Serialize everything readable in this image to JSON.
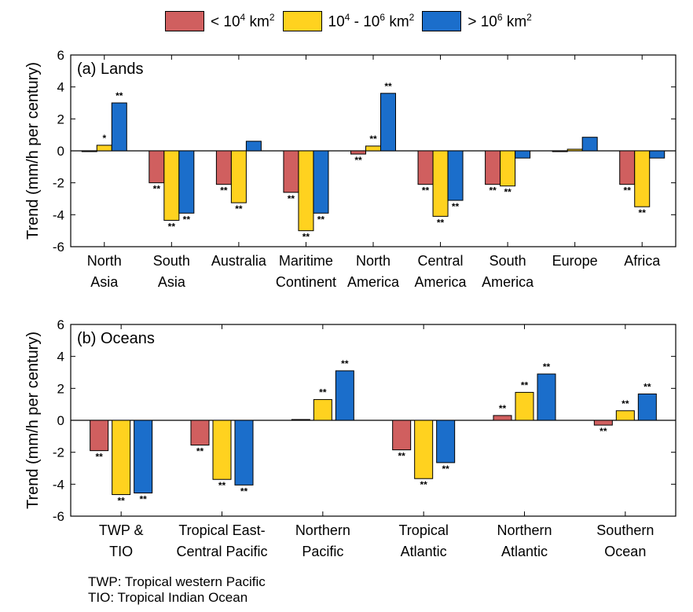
{
  "legend": [
    {
      "prefix": "< 10",
      "sup1": "4",
      "mid": " km",
      "sup2": "2",
      "suffix": "",
      "color": "#d05f5f"
    },
    {
      "prefix": "10",
      "sup1": "4",
      "mid": " - 10",
      "sup2": "6",
      "suffix": " km",
      "sup3": "2",
      "color": "#ffd21f"
    },
    {
      "prefix": "> 10",
      "sup1": "6",
      "mid": " km",
      "sup2": "2",
      "suffix": "",
      "color": "#1b6ecb"
    }
  ],
  "chart_data": [
    {
      "type": "bar",
      "panel_label": "(a)  Lands",
      "ylabel": "Trend (mm/h per century)",
      "ylim": [
        -6,
        6
      ],
      "yticks": [
        6,
        4,
        2,
        0,
        -2,
        -4,
        -6
      ],
      "categories": [
        [
          "North",
          "Asia"
        ],
        [
          "South",
          "Asia"
        ],
        [
          "Australia"
        ],
        [
          "Maritime",
          "Continent"
        ],
        [
          "North",
          "America"
        ],
        [
          "Central",
          "America"
        ],
        [
          "South",
          "America"
        ],
        [
          "Europe"
        ],
        [
          "Africa"
        ]
      ],
      "series": [
        {
          "name": "< 10^4 km^2",
          "color": "#d05f5f",
          "values": [
            0.0,
            -2.0,
            -2.1,
            -2.6,
            -0.2,
            -2.1,
            -2.1,
            -0.05,
            -2.1
          ],
          "sig": [
            "",
            "**",
            "**",
            "**",
            "**",
            "**",
            "**",
            "",
            "**"
          ]
        },
        {
          "name": "10^4 - 10^6 km^2",
          "color": "#ffd21f",
          "values": [
            0.35,
            -4.35,
            -3.25,
            -5.0,
            0.3,
            -4.1,
            -2.2,
            0.1,
            -3.5
          ],
          "sig": [
            "*",
            "**",
            "**",
            "**",
            "**",
            "**",
            "**",
            "",
            "**"
          ]
        },
        {
          "name": "> 10^6 km^2",
          "color": "#1b6ecb",
          "values": [
            3.0,
            -3.9,
            0.6,
            -3.9,
            3.6,
            -3.1,
            -0.45,
            0.85,
            -0.45
          ],
          "sig": [
            "**",
            "**",
            "",
            "**",
            "**",
            "**",
            "",
            "",
            ""
          ]
        }
      ]
    },
    {
      "type": "bar",
      "panel_label": "(b)  Oceans",
      "ylabel": "Trend (mm/h per century)",
      "ylim": [
        -6,
        6
      ],
      "yticks": [
        6,
        4,
        2,
        0,
        -2,
        -4,
        -6
      ],
      "categories": [
        [
          "TWP &",
          "TIO"
        ],
        [
          "Tropical East-",
          "Central Pacific"
        ],
        [
          "Northern",
          "Pacific"
        ],
        [
          "Tropical",
          "Atlantic"
        ],
        [
          "Northern",
          "Atlantic"
        ],
        [
          "Southern",
          "Ocean"
        ]
      ],
      "series": [
        {
          "name": "< 10^4 km^2",
          "color": "#d05f5f",
          "values": [
            -1.9,
            -1.55,
            0.05,
            -1.85,
            0.3,
            -0.3
          ],
          "sig": [
            "**",
            "**",
            "",
            "**",
            "**",
            "**"
          ]
        },
        {
          "name": "10^4 - 10^6 km^2",
          "color": "#ffd21f",
          "values": [
            -4.65,
            -3.7,
            1.3,
            -3.65,
            1.75,
            0.6
          ],
          "sig": [
            "**",
            "**",
            "**",
            "**",
            "**",
            "**"
          ]
        },
        {
          "name": "> 10^6 km^2",
          "color": "#1b6ecb",
          "values": [
            -4.55,
            -4.05,
            3.1,
            -2.65,
            2.9,
            1.65
          ],
          "sig": [
            "**",
            "**",
            "**",
            "**",
            "**",
            "**"
          ]
        }
      ]
    }
  ],
  "footnotes": [
    "TWP: Tropical western Pacific",
    "TIO: Tropical Indian Ocean"
  ]
}
